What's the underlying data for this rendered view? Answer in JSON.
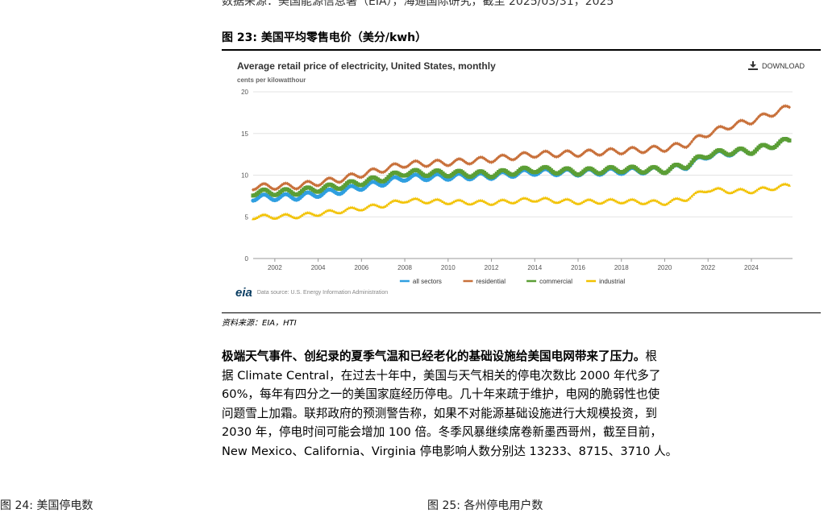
{
  "page": {
    "top_clip": "数据来源：美国能源信息署（EIA），海通国际研究，截至 2025/03/31，2025",
    "figure_title": "图 23:  美国平均零售电价（美分/kwh）",
    "source_caption": "资料来源：EIA，HTI",
    "paragraph": {
      "lead": "极端天气事件、创纪录的夏季气温和已经老化的基础设施给美国电网带来了压力。",
      "lines": [
        "根",
        "据 Climate Central，在过去十年中，美国与天气相关的停电次数比 2000 年代多了",
        "60%，每年有四分之一的美国家庭经历停电。几十年来疏于维护，电网的脆弱性也使",
        "问题雪上加霜。联邦政府的预测警告称，如果不对能源基础设施进行大规模投资，到",
        "2030 年，停电时间可能会增加 100 倍。冬季风暴继续席卷新墨西哥州，截至目前，",
        "New Mexico、California、Virginia 停电影响人数分别达 13233、8715、3710 人。"
      ]
    },
    "bottom_left_clip": "图 24:  美国停电数",
    "bottom_right_clip": "图 25:  各州停电用户数"
  },
  "chart_data": {
    "type": "line",
    "title": "Average retail price of electricity, United States, monthly",
    "ylabel": "cents per kilowatthour",
    "xlabel": "",
    "download_label": "DOWNLOAD",
    "source_text": "Data source: U.S. Energy Information Administration",
    "logo_text": "eia",
    "ylim": [
      0,
      20
    ],
    "xlim": [
      2001,
      2025.9
    ],
    "yticks": [
      0,
      5,
      10,
      15,
      20
    ],
    "xticks": [
      2002,
      2004,
      2006,
      2008,
      2010,
      2012,
      2014,
      2016,
      2018,
      2020,
      2022,
      2024
    ],
    "legend_position": "bottom-center",
    "seasonal_amplitude": 0.35,
    "series": [
      {
        "name": "all sectors",
        "color": "#2f9fe0",
        "marker": "circle",
        "annual": [
          [
            2001,
            7.3
          ],
          [
            2003,
            7.4
          ],
          [
            2005,
            8.1
          ],
          [
            2007,
            9.1
          ],
          [
            2008,
            9.7
          ],
          [
            2010,
            9.8
          ],
          [
            2012,
            9.9
          ],
          [
            2014,
            10.4
          ],
          [
            2016,
            10.3
          ],
          [
            2018,
            10.5
          ],
          [
            2020,
            10.6
          ],
          [
            2021,
            11.1
          ],
          [
            2022,
            12.4
          ],
          [
            2023,
            12.7
          ],
          [
            2024,
            12.9
          ],
          [
            2025.8,
            14.2
          ]
        ]
      },
      {
        "name": "residential",
        "color": "#c8703a",
        "marker": "diamond",
        "annual": [
          [
            2001,
            8.6
          ],
          [
            2003,
            8.7
          ],
          [
            2005,
            9.5
          ],
          [
            2007,
            10.7
          ],
          [
            2008,
            11.3
          ],
          [
            2010,
            11.5
          ],
          [
            2012,
            11.9
          ],
          [
            2014,
            12.5
          ],
          [
            2016,
            12.6
          ],
          [
            2018,
            12.9
          ],
          [
            2020,
            13.2
          ],
          [
            2021,
            13.7
          ],
          [
            2022,
            15.0
          ],
          [
            2023,
            15.9
          ],
          [
            2024,
            16.5
          ],
          [
            2025.8,
            18.2
          ]
        ]
      },
      {
        "name": "commercial",
        "color": "#5b9e35",
        "marker": "square",
        "annual": [
          [
            2001,
            7.9
          ],
          [
            2003,
            8.0
          ],
          [
            2005,
            8.7
          ],
          [
            2007,
            9.6
          ],
          [
            2008,
            10.3
          ],
          [
            2010,
            10.2
          ],
          [
            2012,
            10.1
          ],
          [
            2014,
            10.7
          ],
          [
            2016,
            10.4
          ],
          [
            2018,
            10.7
          ],
          [
            2020,
            10.6
          ],
          [
            2021,
            11.2
          ],
          [
            2022,
            12.5
          ],
          [
            2023,
            12.8
          ],
          [
            2024,
            12.9
          ],
          [
            2025.8,
            14.2
          ]
        ]
      },
      {
        "name": "industrial",
        "color": "#f2c200",
        "marker": "triangle",
        "annual": [
          [
            2001,
            5.0
          ],
          [
            2003,
            5.1
          ],
          [
            2005,
            5.7
          ],
          [
            2007,
            6.4
          ],
          [
            2008,
            7.0
          ],
          [
            2010,
            6.8
          ],
          [
            2012,
            6.7
          ],
          [
            2014,
            7.1
          ],
          [
            2016,
            6.8
          ],
          [
            2018,
            6.9
          ],
          [
            2020,
            6.7
          ],
          [
            2021,
            7.2
          ],
          [
            2022,
            8.3
          ],
          [
            2023,
            8.1
          ],
          [
            2024,
            8.1
          ],
          [
            2025.8,
            8.8
          ]
        ]
      }
    ]
  }
}
